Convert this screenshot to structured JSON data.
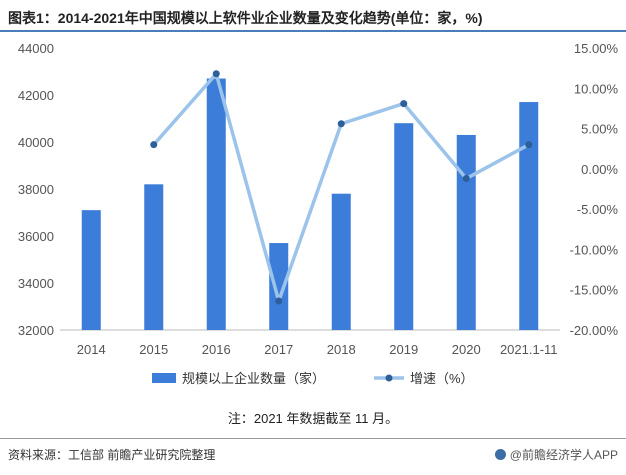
{
  "header": {
    "title": "图表1：2014-2021年中国规模以上软件业企业数量及变化趋势(单位：家，%)"
  },
  "footer": {
    "note": "注：2021 年数据截至 11 月。",
    "source": "资料来源：工信部 前瞻产业研究院整理",
    "brand": "@前瞻经济学人APP"
  },
  "colors": {
    "bar": "#3b7dd8",
    "line": "#9cc3ea",
    "point": "#2d5f9a",
    "rule": "#4a7ebb"
  },
  "chart_data": {
    "type": "bar+line",
    "categories": [
      "2014",
      "2015",
      "2016",
      "2017",
      "2018",
      "2019",
      "2020",
      "2021.1-11"
    ],
    "series": [
      {
        "name": "规模以上企业数量（家）",
        "type": "bar",
        "axis": "left",
        "values": [
          37100,
          38200,
          42700,
          35700,
          37800,
          40800,
          40300,
          41700
        ]
      },
      {
        "name": "增速（%）",
        "type": "line",
        "axis": "right",
        "values": [
          null,
          3.0,
          11.8,
          -16.4,
          5.6,
          8.1,
          -1.2,
          3.0
        ]
      }
    ],
    "y_left": {
      "ylim": [
        32000,
        44000
      ],
      "ticks": [
        "32000",
        "34000",
        "36000",
        "38000",
        "40000",
        "42000",
        "44000"
      ]
    },
    "y_right": {
      "ylim": [
        -20,
        15
      ],
      "ticks": [
        "-20.00%",
        "-15.00%",
        "-10.00%",
        "-5.00%",
        "0.00%",
        "5.00%",
        "10.00%",
        "15.00%"
      ]
    },
    "legend": "bottom",
    "grid": false
  }
}
